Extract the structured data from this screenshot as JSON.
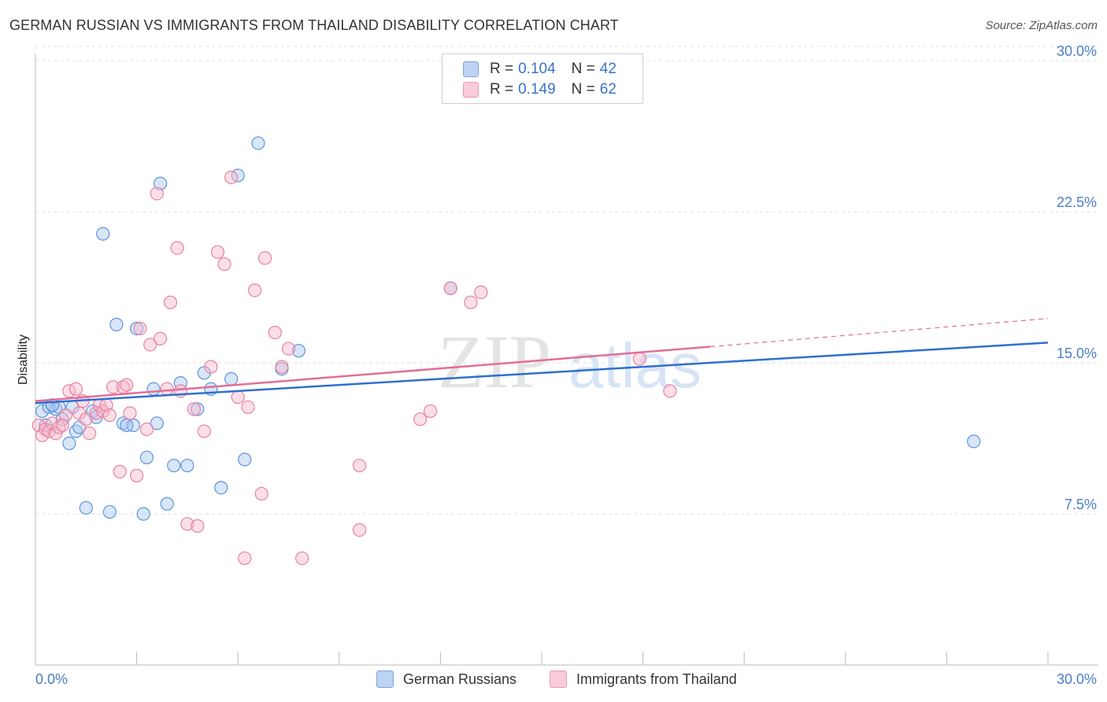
{
  "header": {
    "title": "GERMAN RUSSIAN VS IMMIGRANTS FROM THAILAND DISABILITY CORRELATION CHART",
    "source": "Source: ZipAtlas.com"
  },
  "legend": {
    "rows": [
      {
        "r_label": "R =",
        "r_value": "0.104",
        "n_label": "N =",
        "n_value": "42"
      },
      {
        "r_label": "R =",
        "r_value": "0.149",
        "n_label": "N =",
        "n_value": "62"
      }
    ]
  },
  "bottom_legend": {
    "series_a": "German Russians",
    "series_b": "Immigrants from Thailand"
  },
  "colors": {
    "blue_fill": "#a9c7f0",
    "blue_stroke": "#5e93db",
    "blue_line": "#2f6fcf",
    "pink_fill": "#f7b9cc",
    "pink_stroke": "#e8819f",
    "pink_line": "#e46d96",
    "grid": "#dddddd",
    "tick_label": "#4a7dc9"
  },
  "chart_data": {
    "type": "scatter",
    "title": "GERMAN RUSSIAN VS IMMIGRANTS FROM THAILAND DISABILITY CORRELATION CHART",
    "xlabel": "",
    "ylabel": "Disability",
    "xlim": [
      0,
      30
    ],
    "ylim": [
      0,
      31.5
    ],
    "x_tick_labels": [
      "0.0%",
      "30.0%"
    ],
    "y_ticks": [
      7.5,
      15.0,
      22.5,
      30.0
    ],
    "y_tick_labels": [
      "7.5%",
      "15.0%",
      "22.5%",
      "30.0%"
    ],
    "grid": true,
    "legend_position": "top-center",
    "watermark": "ZIPatlas",
    "series": [
      {
        "name": "German Russians",
        "r": 0.104,
        "n": 42,
        "trend": {
          "x0": 0,
          "y0": 13.0,
          "x1": 30,
          "y1": 16.0
        },
        "points": [
          [
            0.2,
            12.6
          ],
          [
            0.4,
            12.8
          ],
          [
            0.6,
            12.7
          ],
          [
            0.7,
            12.8
          ],
          [
            0.8,
            12.2
          ],
          [
            1.0,
            11.0
          ],
          [
            1.2,
            11.6
          ],
          [
            1.3,
            11.8
          ],
          [
            1.5,
            7.8
          ],
          [
            1.7,
            12.6
          ],
          [
            1.8,
            12.3
          ],
          [
            2.0,
            21.4
          ],
          [
            2.2,
            7.6
          ],
          [
            2.4,
            16.9
          ],
          [
            2.6,
            12.0
          ],
          [
            2.9,
            11.9
          ],
          [
            3.0,
            16.7
          ],
          [
            3.2,
            7.5
          ],
          [
            3.3,
            10.3
          ],
          [
            3.5,
            13.7
          ],
          [
            3.6,
            12.0
          ],
          [
            3.7,
            23.9
          ],
          [
            3.9,
            8.0
          ],
          [
            4.1,
            9.9
          ],
          [
            4.3,
            14.0
          ],
          [
            4.5,
            9.9
          ],
          [
            4.8,
            12.7
          ],
          [
            5.0,
            14.5
          ],
          [
            5.2,
            13.7
          ],
          [
            5.5,
            8.8
          ],
          [
            5.8,
            14.2
          ],
          [
            6.0,
            24.3
          ],
          [
            6.2,
            10.2
          ],
          [
            6.6,
            25.9
          ],
          [
            7.3,
            14.7
          ],
          [
            7.8,
            15.6
          ],
          [
            12.3,
            18.7
          ],
          [
            0.3,
            11.9
          ],
          [
            0.5,
            12.9
          ],
          [
            1.1,
            12.8
          ],
          [
            27.8,
            11.1
          ],
          [
            2.7,
            11.9
          ]
        ]
      },
      {
        "name": "Immigrants from Thailand",
        "r": 0.149,
        "n": 62,
        "trend": {
          "x0": 0,
          "y0": 13.1,
          "x1": 20,
          "y1": 15.8
        },
        "trend_dashed": {
          "x0": 20,
          "y0": 15.8,
          "x1": 30,
          "y1": 17.2
        },
        "points": [
          [
            0.1,
            11.9
          ],
          [
            0.2,
            11.4
          ],
          [
            0.3,
            11.7
          ],
          [
            0.4,
            11.6
          ],
          [
            0.5,
            12.0
          ],
          [
            0.6,
            11.5
          ],
          [
            0.7,
            11.8
          ],
          [
            0.9,
            12.4
          ],
          [
            1.0,
            13.6
          ],
          [
            1.2,
            13.7
          ],
          [
            1.3,
            12.5
          ],
          [
            1.5,
            12.2
          ],
          [
            1.6,
            11.5
          ],
          [
            1.8,
            12.5
          ],
          [
            1.9,
            12.9
          ],
          [
            2.0,
            12.6
          ],
          [
            2.1,
            12.9
          ],
          [
            2.3,
            13.8
          ],
          [
            2.5,
            9.6
          ],
          [
            2.6,
            13.8
          ],
          [
            2.7,
            13.9
          ],
          [
            2.8,
            12.5
          ],
          [
            3.0,
            9.4
          ],
          [
            3.1,
            16.7
          ],
          [
            3.3,
            11.7
          ],
          [
            3.4,
            15.9
          ],
          [
            3.6,
            23.4
          ],
          [
            3.7,
            16.2
          ],
          [
            3.9,
            13.7
          ],
          [
            4.0,
            18.0
          ],
          [
            4.2,
            20.7
          ],
          [
            4.3,
            13.6
          ],
          [
            4.5,
            7.0
          ],
          [
            4.7,
            12.7
          ],
          [
            4.8,
            6.9
          ],
          [
            5.0,
            11.6
          ],
          [
            5.2,
            14.8
          ],
          [
            5.4,
            20.5
          ],
          [
            5.6,
            19.9
          ],
          [
            5.8,
            24.2
          ],
          [
            6.0,
            13.3
          ],
          [
            6.2,
            5.3
          ],
          [
            6.3,
            12.8
          ],
          [
            6.5,
            18.6
          ],
          [
            6.7,
            8.5
          ],
          [
            6.8,
            20.2
          ],
          [
            7.1,
            16.5
          ],
          [
            7.3,
            14.8
          ],
          [
            7.5,
            15.7
          ],
          [
            7.9,
            5.3
          ],
          [
            9.6,
            9.9
          ],
          [
            9.6,
            6.7
          ],
          [
            11.4,
            12.2
          ],
          [
            11.7,
            12.6
          ],
          [
            12.3,
            18.7
          ],
          [
            12.9,
            18.0
          ],
          [
            13.2,
            18.5
          ],
          [
            17.9,
            15.2
          ],
          [
            18.8,
            13.6
          ],
          [
            0.8,
            11.9
          ],
          [
            1.4,
            13.1
          ],
          [
            2.2,
            12.4
          ]
        ]
      }
    ]
  }
}
